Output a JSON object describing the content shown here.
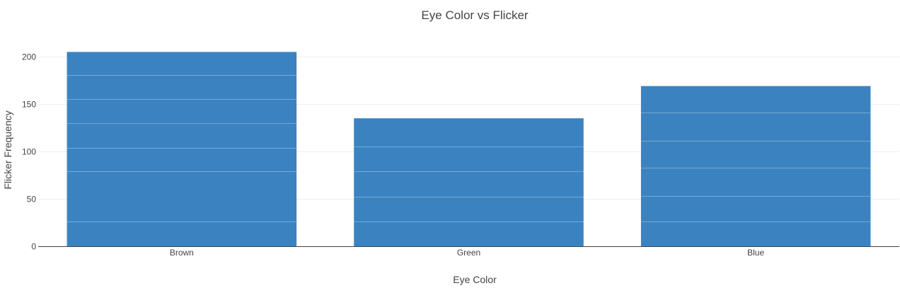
{
  "chart_data": {
    "type": "bar",
    "title": "Eye Color vs Flicker",
    "xlabel": "Eye Color",
    "ylabel": "Flicker Frequency",
    "categories": [
      "Brown",
      "Green",
      "Blue"
    ],
    "values": [
      205,
      135,
      169
    ],
    "ylim": [
      0,
      215
    ],
    "yticks": [
      0,
      50,
      100,
      150,
      200
    ],
    "grid": true,
    "bar_color": "#3a83c0",
    "segments": [
      [
        26,
        79,
        104,
        130,
        155,
        181
      ],
      [
        26,
        52,
        79,
        105
      ],
      [
        26,
        53,
        83,
        111,
        141
      ]
    ]
  }
}
